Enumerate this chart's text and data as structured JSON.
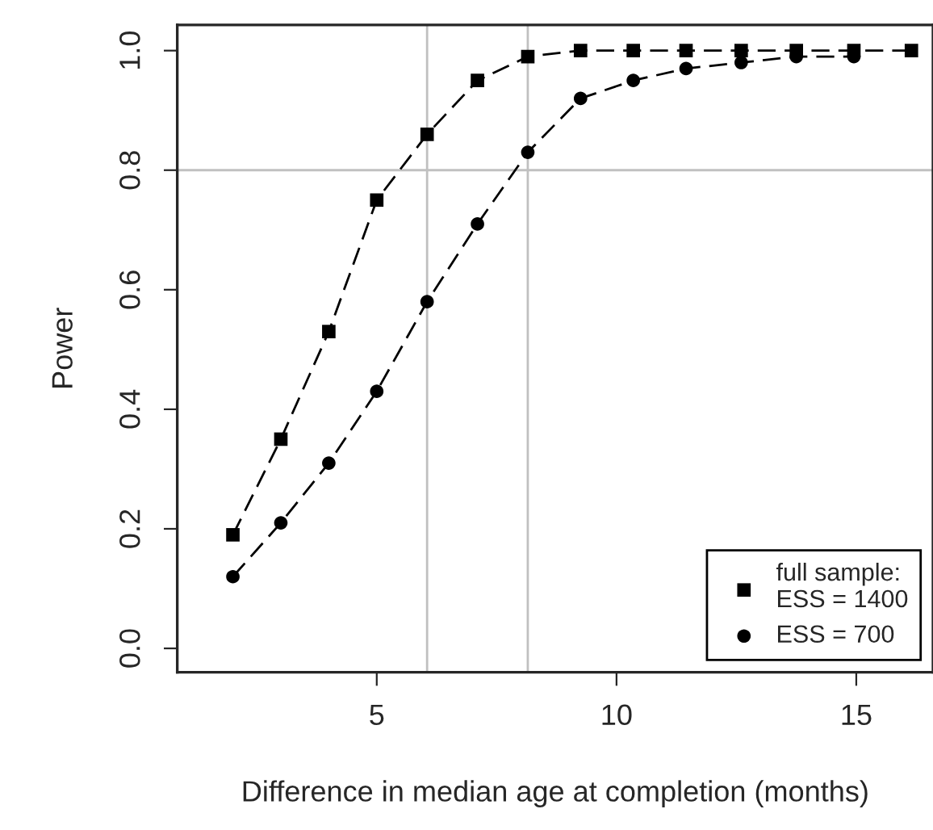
{
  "chart_data": {
    "type": "line",
    "xlabel": "Difference in median age at completion (months)",
    "ylabel": "Power",
    "xlim": [
      0.84,
      16.6
    ],
    "ylim": [
      -0.04,
      1.043
    ],
    "xticks": [
      5,
      10,
      15
    ],
    "yticks": [
      {
        "value": 0,
        "label": "0.0"
      },
      0.2,
      0.4,
      0.6,
      0.8,
      {
        "value": 1,
        "label": "1.0"
      }
    ],
    "line_style": "dashed",
    "legend": "bottom right",
    "grid": false,
    "series": [
      {
        "name": "full sample:\nESS = 1400",
        "color": "#000000",
        "marker": "square",
        "x": [
          2,
          3,
          4,
          5,
          6.05,
          7.1,
          8.15,
          9.25,
          10.35,
          11.45,
          12.6,
          13.75,
          14.95,
          16.15
        ],
        "values": [
          0.19,
          0.35,
          0.53,
          0.75,
          0.86,
          0.95,
          0.99,
          1.0,
          1.0,
          1.0,
          1.0,
          1.0,
          1.0,
          1.0
        ]
      },
      {
        "name": "ESS = 700",
        "color": "#000000",
        "marker": "circle",
        "x": [
          2,
          3,
          4,
          5,
          6.05,
          7.1,
          8.15,
          9.25,
          10.35,
          11.45,
          12.6,
          13.75,
          14.95
        ],
        "values": [
          0.12,
          0.21,
          0.31,
          0.43,
          0.58,
          0.71,
          0.83,
          0.92,
          0.95,
          0.97,
          0.98,
          0.99,
          0.99
        ]
      }
    ],
    "ref_lines": [
      {
        "axis": "y",
        "value": 0.8,
        "color": "#c0c0c0"
      },
      {
        "axis": "x",
        "value": 6.05,
        "color": "#c0c0c0"
      },
      {
        "axis": "x",
        "value": 8.15,
        "color": "#c0c0c0"
      }
    ]
  }
}
